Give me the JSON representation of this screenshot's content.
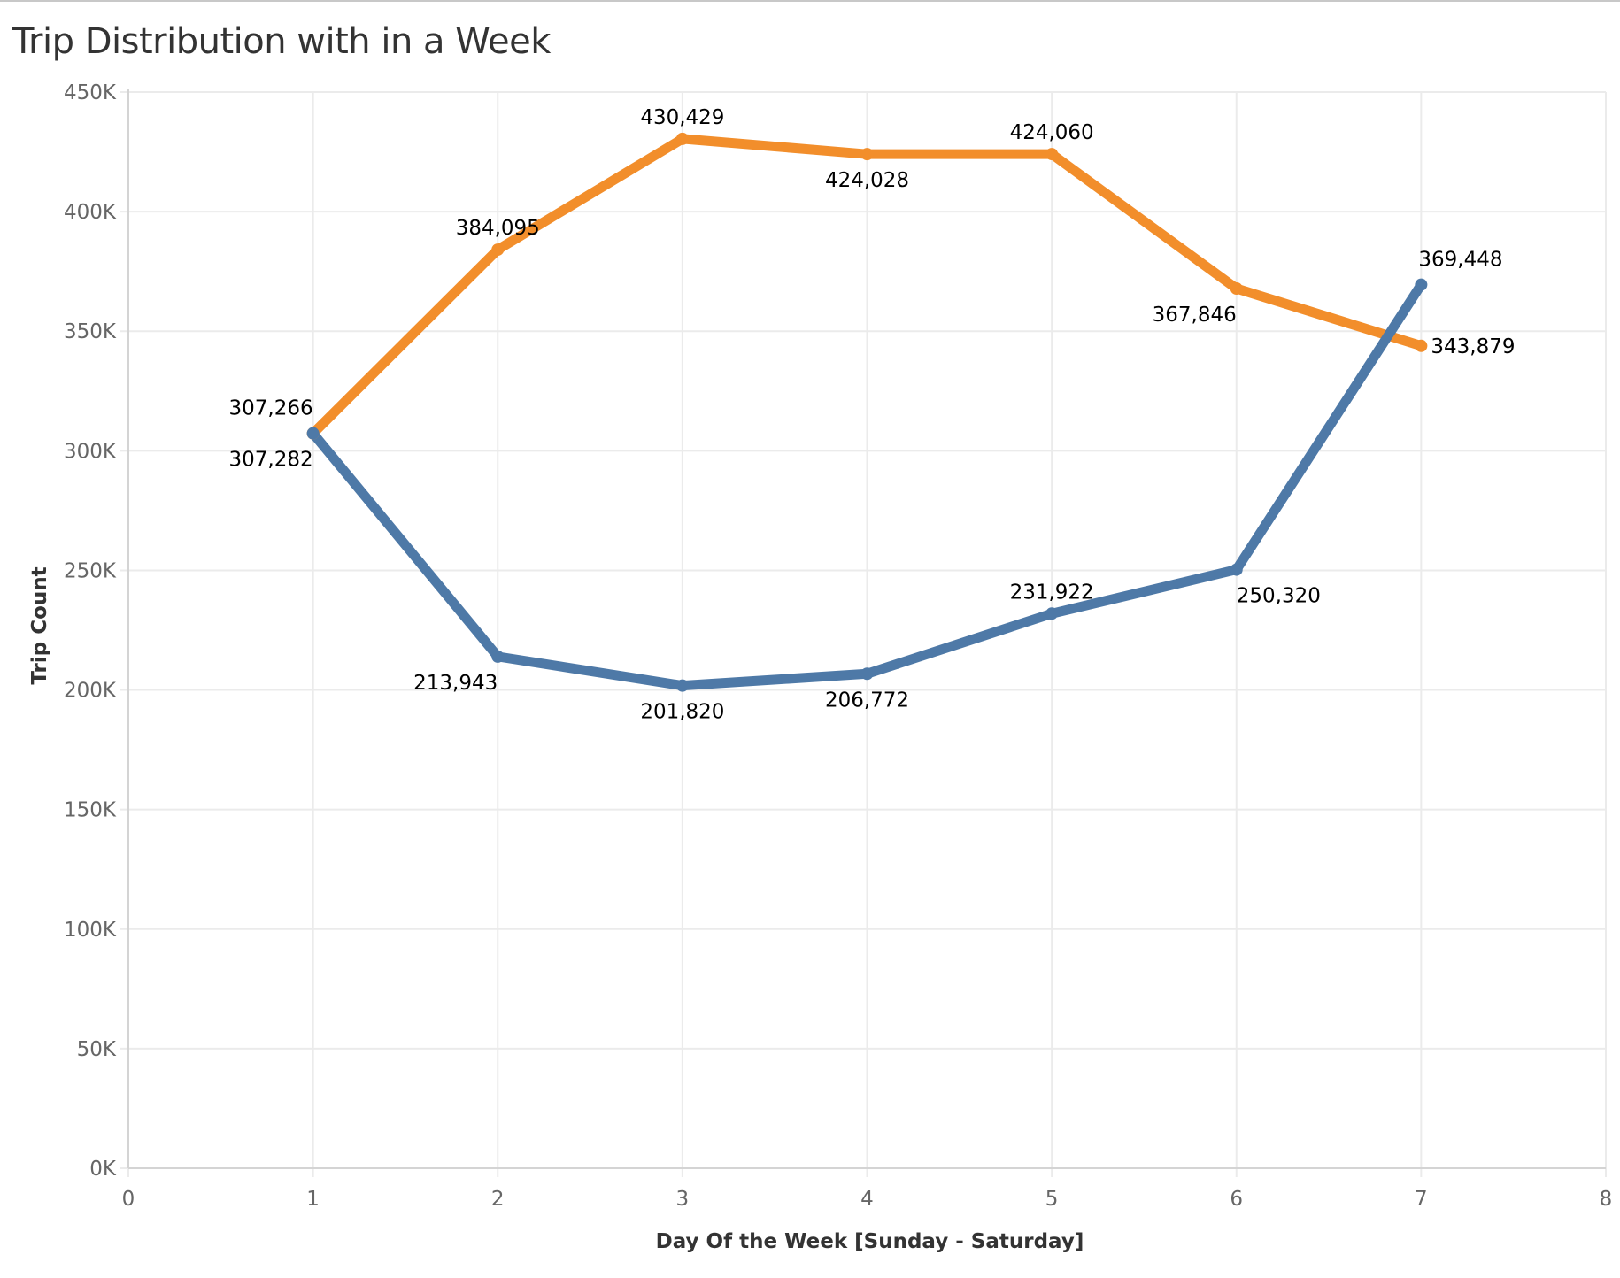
{
  "title": "Trip Distribution with in a Week",
  "colors": {
    "series_a": "#f28e2b",
    "series_b": "#4e79a7",
    "grid": "#ebebeb",
    "axis": "#d4d4d4"
  },
  "chart_data": {
    "type": "line",
    "title": "Trip Distribution with in a Week",
    "xlabel": "Day Of the Week [Sunday - Saturday]",
    "ylabel": "Trip Count",
    "xlim": [
      0,
      8
    ],
    "ylim": [
      0,
      450000
    ],
    "x_ticks": [
      "0",
      "1",
      "2",
      "3",
      "4",
      "5",
      "6",
      "7",
      "8"
    ],
    "y_ticks": [
      "0K",
      "50K",
      "100K",
      "150K",
      "200K",
      "250K",
      "300K",
      "350K",
      "400K",
      "450K"
    ],
    "grid": true,
    "legend": "none",
    "x": [
      1,
      2,
      3,
      4,
      5,
      6,
      7
    ],
    "series": [
      {
        "color": "#f28e2b",
        "values": [
          307266,
          384095,
          430429,
          424028,
          424060,
          367846,
          343879
        ],
        "labels": [
          "307,266",
          "384,095",
          "430,429",
          "424,028",
          "424,060",
          "367,846",
          "343,879"
        ]
      },
      {
        "color": "#4e79a7",
        "values": [
          307282,
          213943,
          201820,
          206772,
          231922,
          250320,
          369448
        ],
        "labels": [
          "307,282",
          "213,943",
          "201,820",
          "206,772",
          "231,922",
          "250,320",
          "369,448"
        ]
      }
    ]
  }
}
